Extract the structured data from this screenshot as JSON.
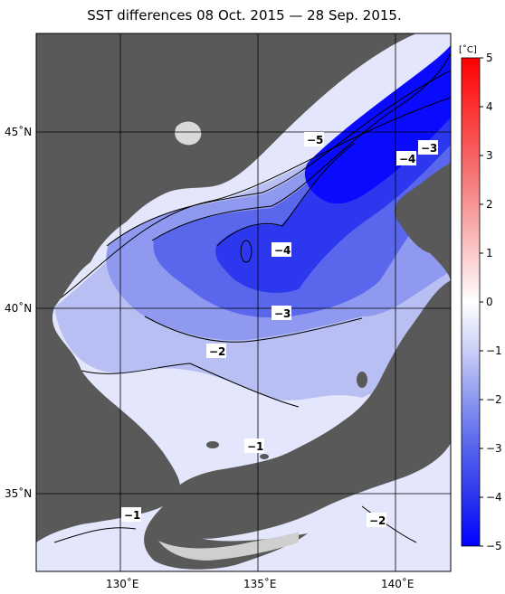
{
  "title": "SST differences 08 Oct. 2015 — 28 Sep. 2015.",
  "lat_labels": [
    "45˚N",
    "40˚N",
    "35˚N"
  ],
  "lon_labels": [
    "130˚E",
    "135˚E",
    "140˚E"
  ],
  "colorbar": {
    "unit": "[˚C]",
    "ticks": [
      "5",
      "4",
      "3",
      "2",
      "1",
      "0",
      "−1",
      "−2",
      "−3",
      "−4",
      "−5"
    ],
    "range": [
      -5,
      5
    ],
    "colors": {
      "neg5": "#0000ff",
      "neg4": "#2b35ee",
      "neg3": "#5563ec",
      "neg2": "#8c97ef",
      "neg1": "#c9cff6",
      "zero": "#ffffff",
      "pos1": "#fbcaca",
      "pos3": "#f57a7a",
      "pos5": "#ff0000"
    }
  },
  "contour_labels": [
    "−5",
    "−3",
    "−4",
    "−4",
    "−3",
    "−2",
    "−1",
    "−1",
    "−2"
  ],
  "colors": {
    "land": "#595959",
    "grid": "#000000"
  }
}
